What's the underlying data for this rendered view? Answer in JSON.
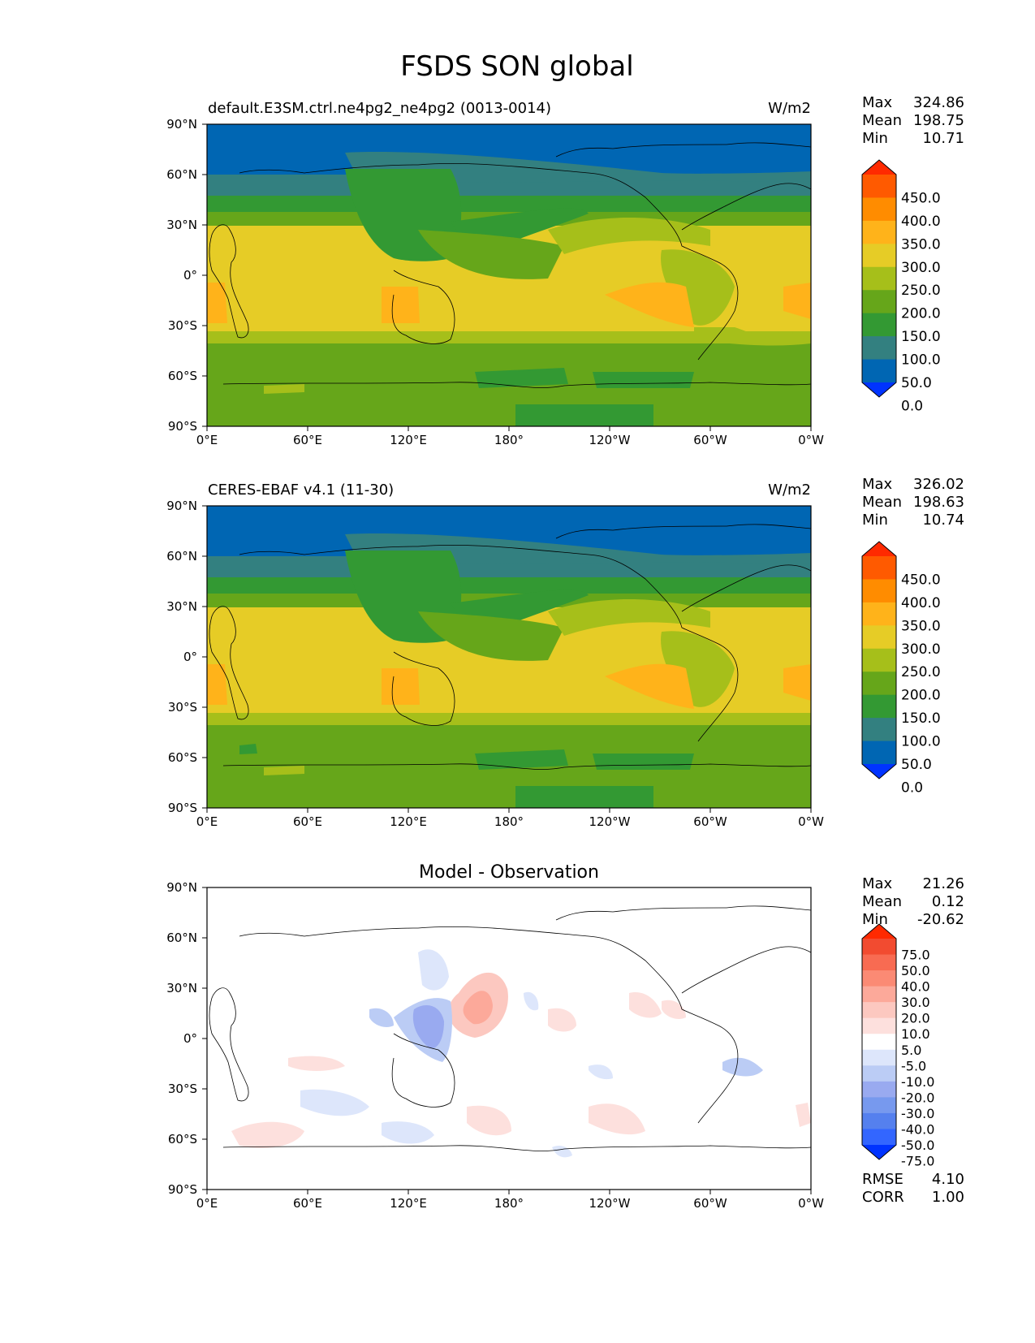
{
  "figure": {
    "title": "FSDS SON global"
  },
  "chart_data": [
    {
      "type": "heatmap",
      "panel": "model",
      "title_left": "default.E3SM.ctrl.ne4pg2_ne4pg2 (0013-0014)",
      "title_right": "W/m2",
      "x_ticks": [
        "0°E",
        "60°E",
        "120°E",
        "180°",
        "120°W",
        "60°W",
        "0°W"
      ],
      "y_ticks": [
        "90°N",
        "60°N",
        "30°N",
        "0°",
        "30°S",
        "60°S",
        "90°S"
      ],
      "xlim": [
        0,
        360
      ],
      "ylim": [
        -90,
        90
      ],
      "stats": [
        {
          "label": "Max",
          "value": "324.86"
        },
        {
          "label": "Mean",
          "value": "198.75"
        },
        {
          "label": "Min",
          "value": "10.71"
        }
      ],
      "colorbar_labels": [
        "450.0",
        "400.0",
        "350.0",
        "300.0",
        "250.0",
        "200.0",
        "150.0",
        "100.0",
        "50.0",
        "0.0"
      ]
    },
    {
      "type": "heatmap",
      "panel": "observation",
      "title_left": "CERES-EBAF v4.1 (11-30)",
      "title_right": "W/m2",
      "x_ticks": [
        "0°E",
        "60°E",
        "120°E",
        "180°",
        "120°W",
        "60°W",
        "0°W"
      ],
      "y_ticks": [
        "90°N",
        "60°N",
        "30°N",
        "0°",
        "30°S",
        "60°S",
        "90°S"
      ],
      "xlim": [
        0,
        360
      ],
      "ylim": [
        -90,
        90
      ],
      "stats": [
        {
          "label": "Max",
          "value": "326.02"
        },
        {
          "label": "Mean",
          "value": "198.63"
        },
        {
          "label": "Min",
          "value": "10.74"
        }
      ],
      "colorbar_labels": [
        "450.0",
        "400.0",
        "350.0",
        "300.0",
        "250.0",
        "200.0",
        "150.0",
        "100.0",
        "50.0",
        "0.0"
      ]
    },
    {
      "type": "heatmap",
      "panel": "difference",
      "title_center": "Model - Observation",
      "x_ticks": [
        "0°E",
        "60°E",
        "120°E",
        "180°",
        "120°W",
        "60°W",
        "0°W"
      ],
      "y_ticks": [
        "90°N",
        "60°N",
        "30°N",
        "0°",
        "30°S",
        "60°S",
        "90°S"
      ],
      "xlim": [
        0,
        360
      ],
      "ylim": [
        -90,
        90
      ],
      "stats": [
        {
          "label": "Max",
          "value": "21.26"
        },
        {
          "label": "Mean",
          "value": "0.12"
        },
        {
          "label": "Min",
          "value": "-20.62"
        }
      ],
      "colorbar_labels": [
        "75.0",
        "50.0",
        "40.0",
        "30.0",
        "20.0",
        "10.0",
        "5.0",
        "-5.0",
        "-10.0",
        "-20.0",
        "-30.0",
        "-40.0",
        "-50.0",
        "-75.0"
      ],
      "extra_stats": [
        {
          "label": "RMSE",
          "value": "4.10"
        },
        {
          "label": "CORR",
          "value": "1.00"
        }
      ]
    }
  ],
  "colors": {
    "field_scale": [
      "#0033ff",
      "#0066b3",
      "#338080",
      "#339933",
      "#66a61a",
      "#a6bf1a",
      "#e6cc26",
      "#ffb31a",
      "#ff8c00",
      "#ff5a00",
      "#ff2a00"
    ],
    "diff_scale": [
      "#0033ff",
      "#3366ff",
      "#5580ee",
      "#7799ee",
      "#99aaf0",
      "#bbccf5",
      "#dde6fb",
      "#ffffff",
      "#fde0dd",
      "#fcc8c0",
      "#fca99a",
      "#fb8a74",
      "#f86b52",
      "#f24b30",
      "#ff2a00"
    ]
  }
}
